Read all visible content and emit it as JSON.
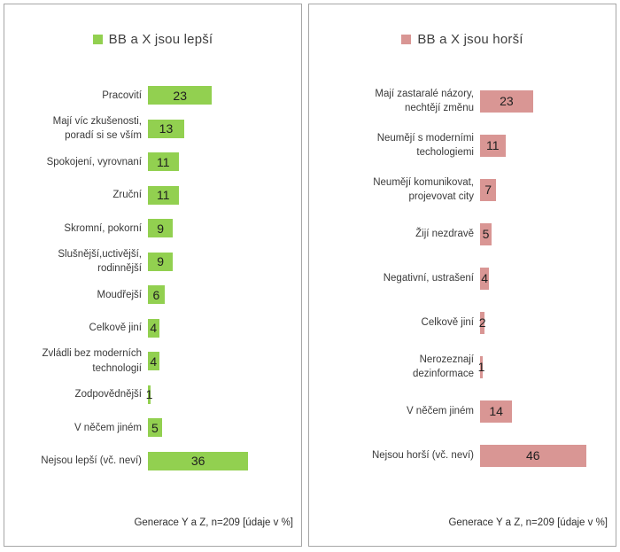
{
  "colors": {
    "panel_border": "#a6a6a6",
    "background": "#ffffff",
    "green_series": "#92d050",
    "pink_series": "#d99694",
    "text": "#3a3a3a"
  },
  "chart_data": [
    {
      "type": "bar",
      "orientation": "horizontal",
      "title": "BB a X jsou lepší",
      "legend_label": "BB a X jsou lepší",
      "legend_position": "top-center",
      "bar_color": "#92d050",
      "value_label_position": "inside-center",
      "grid": false,
      "xlim": [
        0,
        40
      ],
      "unit": "%",
      "categories": [
        "Pracovití",
        "Mají víc zkušenosti,\nporadí si se vším",
        "Spokojení, vyrovnaní",
        "Zruční",
        "Skromní, pokorní",
        "Slušnější,uctivější,\nrodinnější",
        "Moudřejší",
        "Celkově jiní",
        "Zvládli bez moderních\ntechnologií",
        "Zodpovědnější",
        "V něčem jiném",
        "Nejsou lepší (vč. neví)"
      ],
      "values": [
        23,
        13,
        11,
        11,
        9,
        9,
        6,
        4,
        4,
        1,
        5,
        36
      ],
      "footnote": "Generace Y a Z, n=209 [údaje v %]"
    },
    {
      "type": "bar",
      "orientation": "horizontal",
      "title": "BB a X jsou horší",
      "legend_label": "BB a X jsou horší",
      "legend_position": "top-center",
      "bar_color": "#d99694",
      "value_label_position": "inside-center",
      "grid": false,
      "xlim": [
        0,
        50
      ],
      "unit": "%",
      "categories": [
        "Mají zastaralé názory,\nnechtějí změnu",
        "Neumějí s moderními\ntechologiemi",
        "Neumějí komunikovat,\nprojevovat city",
        "Žijí nezdravě",
        "Negativní, ustrašení",
        "Celkově jiní",
        "Nerozeznají\ndezinformace",
        "V něčem jiném",
        "Nejsou horší (vč. neví)"
      ],
      "values": [
        23,
        11,
        7,
        5,
        4,
        2,
        1,
        14,
        46
      ],
      "footnote": "Generace Y a Z, n=209 [údaje v %]"
    }
  ]
}
